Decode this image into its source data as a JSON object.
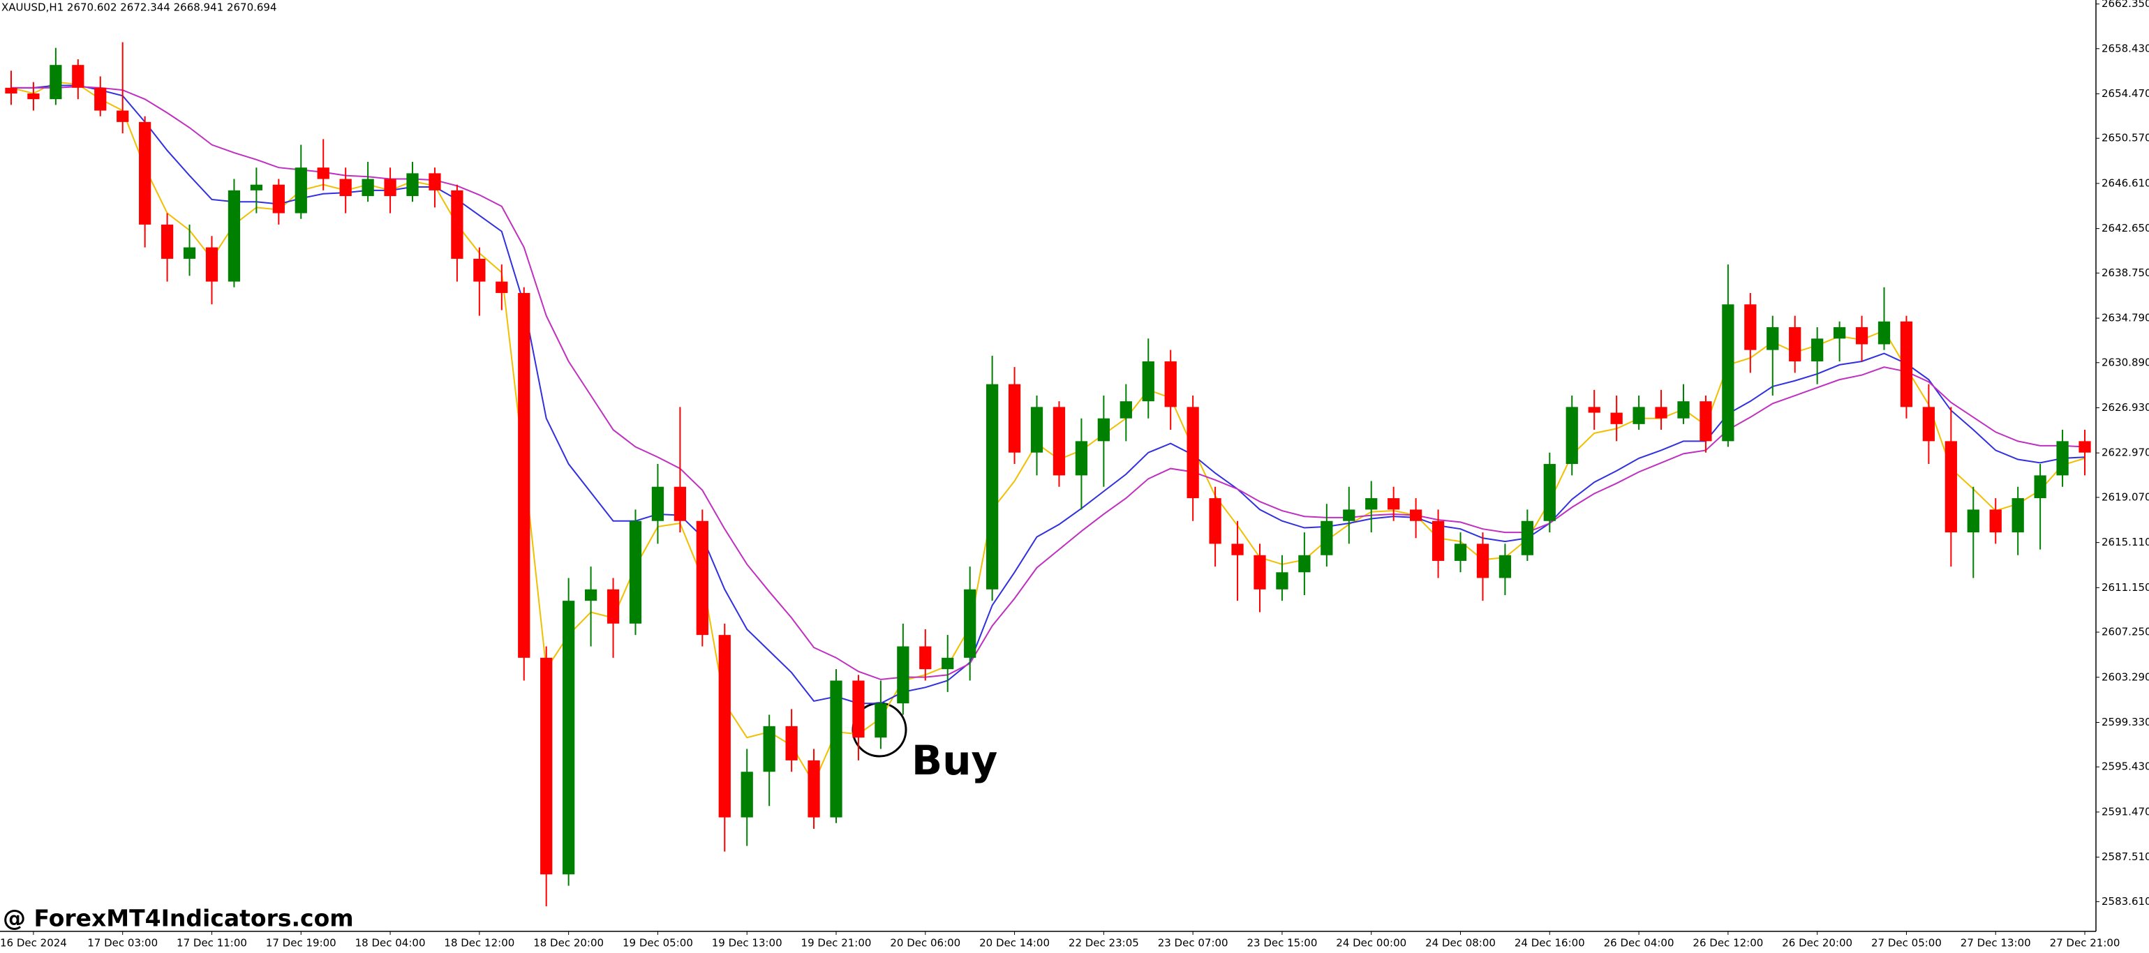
{
  "chart_data": {
    "type": "candlestick",
    "header": "XAUUSD,H1  2670.602 2672.344 2668.941 2670.694",
    "watermark": "@ ForexMT4Indicators.com",
    "annotation": "Buy",
    "up_color": "#008000",
    "down_color": "#ff0000",
    "grid": false,
    "ylim": [
      2581.0,
      2662.7
    ],
    "yticks": [
      {
        "value": 2662.35,
        "label": "2662.350"
      },
      {
        "value": 2658.43,
        "label": "2658.430"
      },
      {
        "value": 2654.47,
        "label": "2654.470"
      },
      {
        "value": 2650.57,
        "label": "2650.570"
      },
      {
        "value": 2646.61,
        "label": "2646.610"
      },
      {
        "value": 2642.65,
        "label": "2642.650"
      },
      {
        "value": 2638.75,
        "label": "2638.750"
      },
      {
        "value": 2634.79,
        "label": "2634.790"
      },
      {
        "value": 2630.89,
        "label": "2630.890"
      },
      {
        "value": 2626.93,
        "label": "2626.930"
      },
      {
        "value": 2622.97,
        "label": "2622.970"
      },
      {
        "value": 2619.07,
        "label": "2619.070"
      },
      {
        "value": 2615.11,
        "label": "2615.110"
      },
      {
        "value": 2611.15,
        "label": "2611.150"
      },
      {
        "value": 2607.25,
        "label": "2607.250"
      },
      {
        "value": 2603.29,
        "label": "2603.290"
      },
      {
        "value": 2599.33,
        "label": "2599.330"
      },
      {
        "value": 2595.43,
        "label": "2595.430"
      },
      {
        "value": 2591.47,
        "label": "2591.470"
      },
      {
        "value": 2587.51,
        "label": "2587.510"
      },
      {
        "value": 2583.61,
        "label": "2583.610"
      }
    ],
    "categories": [
      null,
      "16 Dec 2024",
      null,
      null,
      null,
      "17 Dec 03:00",
      null,
      null,
      null,
      "17 Dec 11:00",
      null,
      null,
      null,
      "17 Dec 19:00",
      null,
      null,
      null,
      "18 Dec 04:00",
      null,
      null,
      null,
      "18 Dec 12:00",
      null,
      null,
      null,
      "18 Dec 20:00",
      null,
      null,
      null,
      "19 Dec 05:00",
      null,
      null,
      null,
      "19 Dec 13:00",
      null,
      null,
      null,
      "19 Dec 21:00",
      null,
      null,
      null,
      "20 Dec 06:00",
      null,
      null,
      null,
      "20 Dec 14:00",
      null,
      null,
      null,
      "22 Dec 23:05",
      null,
      null,
      null,
      "23 Dec 07:00",
      null,
      null,
      null,
      "23 Dec 15:00",
      null,
      null,
      null,
      "24 Dec 00:00",
      null,
      null,
      null,
      "24 Dec 08:00",
      null,
      null,
      null,
      "24 Dec 16:00",
      null,
      null,
      null,
      "26 Dec 04:00",
      null,
      null,
      null,
      "26 Dec 12:00",
      null,
      null,
      null,
      "26 Dec 20:00",
      null,
      null,
      null,
      "27 Dec 05:00",
      null,
      null,
      null,
      "27 Dec 13:00",
      null,
      null,
      null,
      "27 Dec 21:00"
    ],
    "candles": [
      [
        2655,
        2656.5,
        2653.5,
        2654.5
      ],
      [
        2654.5,
        2655.5,
        2653,
        2654
      ],
      [
        2654,
        2658.5,
        2653.5,
        2657
      ],
      [
        2657,
        2657.5,
        2654,
        2655
      ],
      [
        2655,
        2656,
        2652.5,
        2653
      ],
      [
        2653,
        2659,
        2651,
        2652
      ],
      [
        2652,
        2652.5,
        2641,
        2643
      ],
      [
        2643,
        2644,
        2638,
        2640
      ],
      [
        2640,
        2643,
        2638.5,
        2641
      ],
      [
        2641,
        2642,
        2636,
        2638
      ],
      [
        2638,
        2647,
        2637.5,
        2646
      ],
      [
        2646,
        2648,
        2644,
        2646.5
      ],
      [
        2646.5,
        2647,
        2643,
        2644
      ],
      [
        2644,
        2650,
        2643.5,
        2648
      ],
      [
        2648,
        2650.5,
        2646,
        2647
      ],
      [
        2647,
        2648,
        2644,
        2645.5
      ],
      [
        2645.5,
        2648.5,
        2645,
        2647
      ],
      [
        2647,
        2648,
        2644,
        2645.5
      ],
      [
        2645.5,
        2648.5,
        2645,
        2647.5
      ],
      [
        2647.5,
        2648,
        2644.5,
        2646
      ],
      [
        2646,
        2646.5,
        2638,
        2640
      ],
      [
        2640,
        2641,
        2635,
        2638
      ],
      [
        2638,
        2639.5,
        2635.5,
        2637
      ],
      [
        2637,
        2637.5,
        2603,
        2605
      ],
      [
        2605,
        2606,
        2583.2,
        2586
      ],
      [
        2586,
        2612,
        2585,
        2610
      ],
      [
        2610,
        2613,
        2606,
        2611
      ],
      [
        2611,
        2612,
        2605,
        2608
      ],
      [
        2608,
        2618,
        2607,
        2617
      ],
      [
        2617,
        2622,
        2615,
        2620
      ],
      [
        2620,
        2627,
        2616,
        2617
      ],
      [
        2617,
        2618,
        2606,
        2607
      ],
      [
        2607,
        2608,
        2588,
        2591
      ],
      [
        2591,
        2597,
        2588.5,
        2595
      ],
      [
        2595,
        2600,
        2592,
        2599
      ],
      [
        2599,
        2600.5,
        2595,
        2596
      ],
      [
        2596,
        2597,
        2590,
        2591
      ],
      [
        2591,
        2604,
        2590.5,
        2603
      ],
      [
        2603,
        2603.5,
        2596,
        2598
      ],
      [
        2598,
        2603,
        2597,
        2601
      ],
      [
        2601,
        2608,
        2600,
        2606
      ],
      [
        2606,
        2607.5,
        2603,
        2604
      ],
      [
        2604,
        2607,
        2602,
        2605
      ],
      [
        2605,
        2613,
        2603,
        2611
      ],
      [
        2611,
        2631.5,
        2610,
        2629
      ],
      [
        2629,
        2630.5,
        2622,
        2623
      ],
      [
        2623,
        2628,
        2621,
        2627
      ],
      [
        2627,
        2627.5,
        2620,
        2621
      ],
      [
        2621,
        2626,
        2618,
        2624
      ],
      [
        2624,
        2628,
        2620,
        2626
      ],
      [
        2626,
        2629,
        2624,
        2627.5
      ],
      [
        2627.5,
        2633,
        2626,
        2631
      ],
      [
        2631,
        2632,
        2625,
        2627
      ],
      [
        2627,
        2628,
        2617,
        2619
      ],
      [
        2619,
        2620,
        2613,
        2615
      ],
      [
        2615,
        2617,
        2610,
        2614
      ],
      [
        2614,
        2615,
        2609,
        2611
      ],
      [
        2611,
        2614,
        2610,
        2612.5
      ],
      [
        2612.5,
        2616,
        2610.5,
        2614
      ],
      [
        2614,
        2618.5,
        2613,
        2617
      ],
      [
        2617,
        2620,
        2615,
        2618
      ],
      [
        2618,
        2620.5,
        2616,
        2619
      ],
      [
        2619,
        2620,
        2617,
        2618
      ],
      [
        2618,
        2619,
        2615.5,
        2617
      ],
      [
        2617,
        2618,
        2612,
        2613.5
      ],
      [
        2613.5,
        2616,
        2612.5,
        2615
      ],
      [
        2615,
        2616,
        2610,
        2612
      ],
      [
        2612,
        2615,
        2610.5,
        2614
      ],
      [
        2614,
        2618,
        2613.5,
        2617
      ],
      [
        2617,
        2623,
        2616,
        2622
      ],
      [
        2622,
        2628,
        2621,
        2627
      ],
      [
        2627,
        2628.5,
        2625,
        2626.5
      ],
      [
        2626.5,
        2628,
        2624,
        2625.5
      ],
      [
        2625.5,
        2628,
        2625,
        2627
      ],
      [
        2627,
        2628.5,
        2625,
        2626
      ],
      [
        2626,
        2629,
        2625.5,
        2627.5
      ],
      [
        2627.5,
        2628,
        2623,
        2624
      ],
      [
        2624,
        2639.5,
        2623.5,
        2636
      ],
      [
        2636,
        2637,
        2630,
        2632
      ],
      [
        2632,
        2635,
        2628,
        2634
      ],
      [
        2634,
        2635,
        2630,
        2631
      ],
      [
        2631,
        2634,
        2629,
        2633
      ],
      [
        2633,
        2634.5,
        2631,
        2634
      ],
      [
        2634,
        2635,
        2631,
        2632.5
      ],
      [
        2632.5,
        2637.5,
        2632,
        2634.5
      ],
      [
        2634.5,
        2635,
        2626,
        2627
      ],
      [
        2627,
        2629,
        2622,
        2624
      ],
      [
        2624,
        2627,
        2613,
        2616
      ],
      [
        2616,
        2620,
        2612,
        2618
      ],
      [
        2618,
        2619,
        2615,
        2616
      ],
      [
        2616,
        2620,
        2614,
        2619
      ],
      [
        2619,
        2622,
        2614.5,
        2621
      ],
      [
        2621,
        2625,
        2620,
        2624
      ],
      [
        2624,
        2625,
        2621,
        2623
      ]
    ],
    "series": [
      {
        "color": "#f0c000",
        "values": [
          2655,
          2654.5,
          2655.5,
          2655.3,
          2654,
          2653,
          2648,
          2644,
          2642.5,
          2640,
          2643,
          2644.5,
          2644.3,
          2646,
          2646.5,
          2646,
          2646.5,
          2646,
          2646.8,
          2646.4,
          2643,
          2640.5,
          2638.8,
          2622,
          2604,
          2607,
          2609,
          2608.5,
          2613,
          2616.5,
          2616.8,
          2612,
          2601,
          2598,
          2598.5,
          2597.3,
          2594,
          2598.5,
          2598.3,
          2599.7,
          2603,
          2603.5,
          2604.3,
          2607.7,
          2618,
          2620.5,
          2623.8,
          2622.4,
          2623.2,
          2624.6,
          2626,
          2628.5,
          2627.8,
          2623.4,
          2619.2,
          2616.6,
          2613.8,
          2613.2,
          2613.6,
          2615.3,
          2616.7,
          2617.8,
          2617.9,
          2617.5,
          2615.5,
          2615.2,
          2613.6,
          2613.8,
          2615.4,
          2618.7,
          2622.8,
          2624.7,
          2625.1,
          2626,
          2626,
          2626.8,
          2625.4,
          2630.7,
          2631.3,
          2632.7,
          2631.8,
          2632.4,
          2633.2,
          2632.9,
          2633.7,
          2630.4,
          2627.2,
          2621.6,
          2619.8,
          2617.9,
          2618.5,
          2619.7,
          2621.9,
          2622.5
        ]
      },
      {
        "color": "#3030e0",
        "values": [
          2655,
          2655,
          2655.2,
          2655.2,
          2654.8,
          2654.3,
          2652,
          2649.5,
          2647.3,
          2645.2,
          2645,
          2645,
          2644.8,
          2645.3,
          2645.7,
          2645.8,
          2646,
          2646,
          2646.3,
          2646.3,
          2645.2,
          2643.8,
          2642.4,
          2636,
          2626,
          2622,
          2619.5,
          2617,
          2617,
          2617.6,
          2617.5,
          2615.6,
          2611,
          2607.5,
          2605.6,
          2603.7,
          2601.2,
          2601.6,
          2601,
          2601,
          2602,
          2602.4,
          2603,
          2604.6,
          2609.6,
          2612.5,
          2615.6,
          2616.7,
          2618.1,
          2619.6,
          2621.1,
          2623,
          2623.8,
          2622.8,
          2621.2,
          2619.8,
          2618,
          2617,
          2616.4,
          2616.5,
          2616.8,
          2617.2,
          2617.4,
          2617.3,
          2616.6,
          2616.3,
          2615.5,
          2615.2,
          2615.5,
          2616.8,
          2618.9,
          2620.4,
          2621.4,
          2622.5,
          2623.2,
          2624,
          2624,
          2626.4,
          2627.5,
          2628.8,
          2629.3,
          2629.9,
          2630.7,
          2631,
          2631.7,
          2630.8,
          2629.4,
          2626.7,
          2625,
          2623.2,
          2622.4,
          2622.1,
          2622.5,
          2622.6
        ]
      },
      {
        "color": "#c030c0",
        "values": [
          2655,
          2655,
          2655,
          2655.1,
          2655,
          2654.8,
          2654,
          2652.8,
          2651.5,
          2650,
          2649.3,
          2648.7,
          2648,
          2647.8,
          2647.6,
          2647.3,
          2647.2,
          2647,
          2647,
          2646.9,
          2646.4,
          2645.6,
          2644.6,
          2641,
          2635,
          2631,
          2628,
          2625,
          2623.5,
          2622.6,
          2621.6,
          2619.7,
          2616.3,
          2613.2,
          2610.8,
          2608.5,
          2605.9,
          2605,
          2603.8,
          2603.1,
          2603.3,
          2603.3,
          2603.5,
          2604.5,
          2607.8,
          2610.2,
          2612.9,
          2614.5,
          2616.1,
          2617.6,
          2619,
          2620.7,
          2621.6,
          2621.3,
          2620.6,
          2619.8,
          2618.7,
          2617.9,
          2617.4,
          2617.3,
          2617.3,
          2617.5,
          2617.6,
          2617.5,
          2617.1,
          2616.9,
          2616.3,
          2616,
          2616,
          2616.8,
          2618.2,
          2619.4,
          2620.3,
          2621.3,
          2622.1,
          2622.9,
          2623.2,
          2625,
          2626.1,
          2627.3,
          2628,
          2628.7,
          2629.4,
          2629.8,
          2630.5,
          2630.1,
          2629.2,
          2627.4,
          2626.1,
          2624.8,
          2624,
          2623.6,
          2623.6,
          2623.5
        ]
      }
    ]
  }
}
